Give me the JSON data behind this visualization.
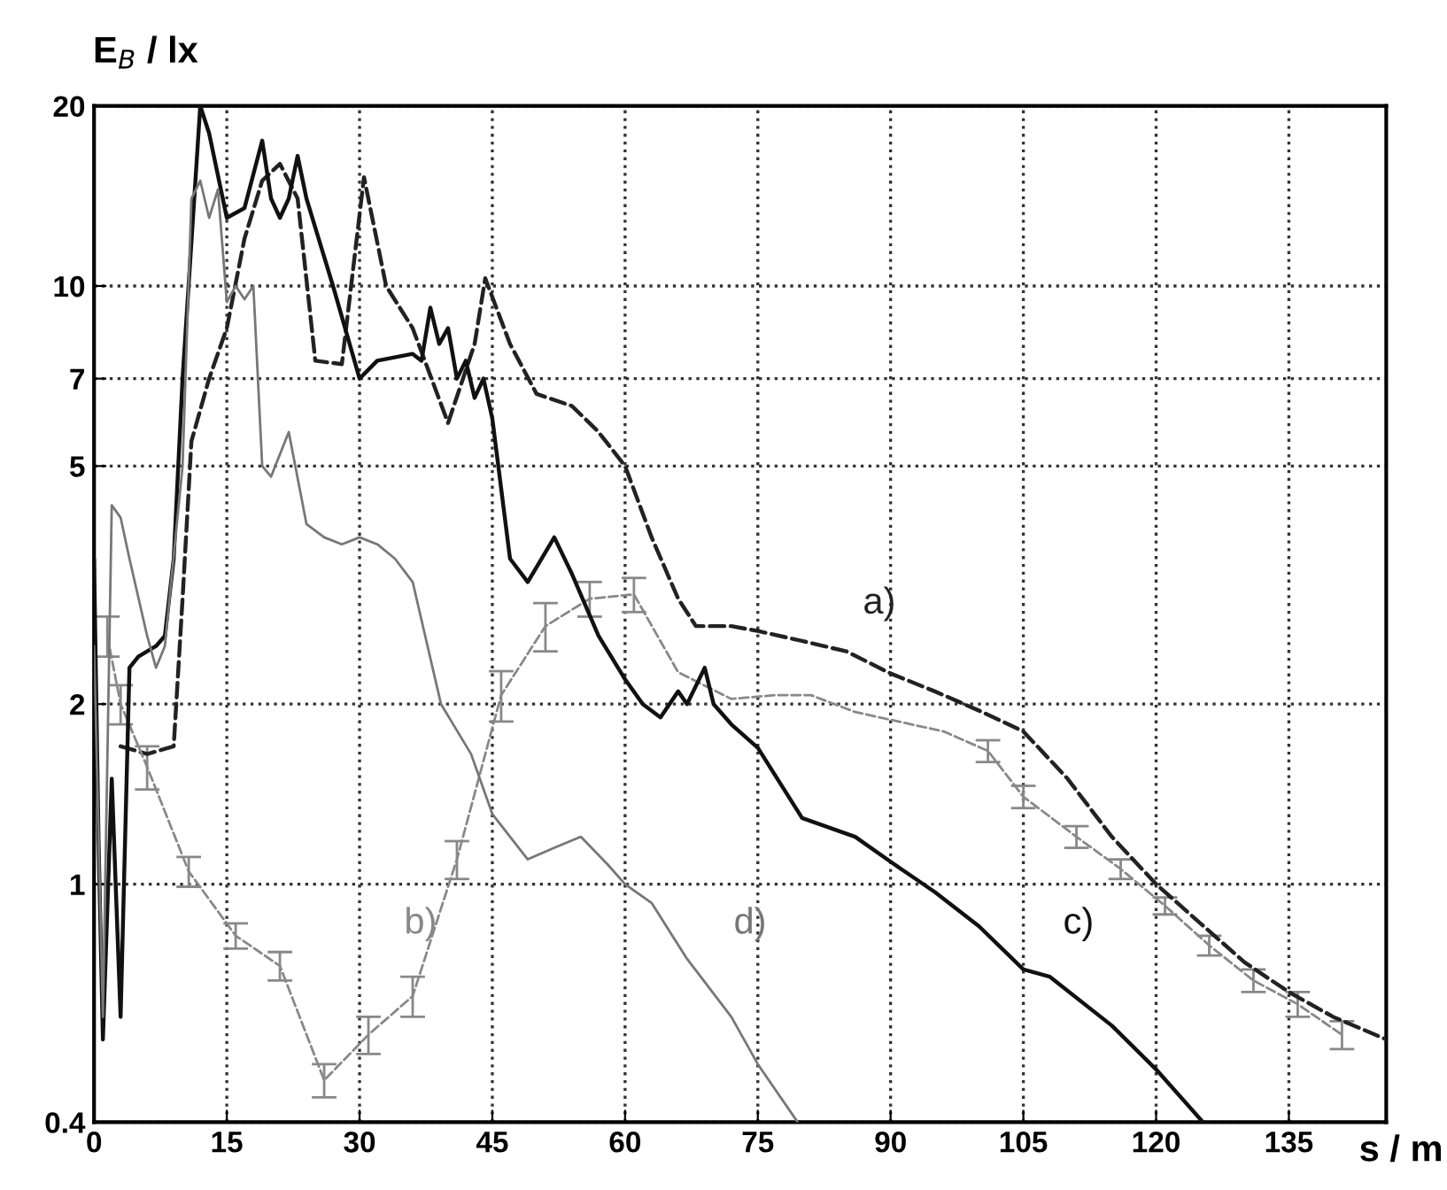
{
  "chart_data": {
    "type": "line",
    "xlabel": "s / m",
    "ylabel": "E$_{B}$ / lx",
    "log": "y",
    "grid": true,
    "xlim": [
      0,
      146
    ],
    "ylim": [
      0.4,
      20
    ],
    "xticks": [
      0,
      15,
      30,
      45,
      60,
      75,
      90,
      105,
      120,
      135
    ],
    "yticks": [
      0.4,
      1,
      2,
      5,
      7,
      10,
      20
    ],
    "series": [
      {
        "name": "a)",
        "color": "#222222",
        "line_style": "dashed",
        "x": [
          3,
          6,
          9,
          10,
          11,
          13,
          15,
          17,
          19,
          21,
          23,
          25,
          28,
          30.5,
          33,
          36,
          40,
          43,
          44.2,
          47,
          50,
          54,
          57,
          60,
          63,
          66,
          68,
          72,
          75,
          80,
          85,
          90,
          95,
          100,
          105,
          110,
          115,
          120,
          125,
          130,
          135,
          140,
          146
        ],
        "values": [
          1.7,
          1.65,
          1.7,
          3,
          5.5,
          7,
          8.5,
          12,
          15,
          16,
          14,
          7.5,
          7.4,
          15.2,
          10,
          8.5,
          5.9,
          8,
          10.3,
          8,
          6.6,
          6.3,
          5.7,
          5,
          3.8,
          3,
          2.7,
          2.7,
          2.65,
          2.55,
          2.45,
          2.25,
          2.1,
          1.95,
          1.8,
          1.5,
          1.2,
          1.0,
          0.86,
          0.74,
          0.66,
          0.6,
          0.55
        ]
      },
      {
        "name": "b)",
        "color": "#888888",
        "line_style": "dashed",
        "x": [
          1.5,
          3,
          6,
          10.7,
          16,
          21,
          26,
          31,
          36,
          41,
          46,
          51,
          56,
          61,
          66,
          72,
          77,
          81,
          86,
          91.6,
          96,
          101,
          105,
          111,
          116,
          121,
          126,
          131,
          136,
          141
        ],
        "values": [
          2.6,
          2.0,
          1.57,
          1.05,
          0.82,
          0.73,
          0.47,
          0.56,
          0.65,
          1.1,
          2.07,
          2.7,
          3.0,
          3.05,
          2.26,
          2.04,
          2.07,
          2.07,
          1.94,
          1.86,
          1.8,
          1.67,
          1.4,
          1.2,
          1.06,
          0.92,
          0.79,
          0.69,
          0.63,
          0.56
        ],
        "errors": [
          0.2,
          0.15,
          0.13,
          0.06,
          0.04,
          0.04,
          0.03,
          0.04,
          0.05,
          0.08,
          0.2,
          0.25,
          0.2,
          0.2,
          null,
          null,
          null,
          null,
          null,
          null,
          null,
          0.07,
          0.06,
          0.05,
          0.04,
          0.03,
          0.03,
          0.03,
          0.03,
          0.03
        ]
      },
      {
        "name": "c)",
        "color": "#111111",
        "line_style": "solid",
        "x": [
          0,
          0.5,
          1,
          2,
          3,
          4,
          5,
          7,
          8,
          9,
          10,
          12,
          13,
          15,
          17,
          19,
          20,
          21,
          22,
          23,
          24,
          27,
          30,
          32,
          36,
          37,
          38,
          39,
          40,
          41,
          42,
          43,
          44,
          45,
          47,
          49,
          52,
          54,
          57,
          60,
          62,
          64,
          66,
          67,
          69,
          70,
          72,
          75,
          80,
          86,
          90,
          95,
          100,
          105,
          108,
          115,
          120,
          125.3
        ],
        "values": [
          3.5,
          1.2,
          0.55,
          1.5,
          0.6,
          2.3,
          2.4,
          2.5,
          2.6,
          3.5,
          7,
          20,
          18,
          13,
          13.5,
          17.5,
          14,
          13,
          14,
          16.5,
          14,
          10,
          7,
          7.5,
          7.7,
          7.5,
          9.2,
          8,
          8.5,
          7,
          7.5,
          6.5,
          7,
          6,
          3.5,
          3.2,
          3.8,
          3.3,
          2.6,
          2.2,
          2.0,
          1.9,
          2.1,
          2.0,
          2.3,
          2.0,
          1.85,
          1.69,
          1.29,
          1.2,
          1.09,
          0.97,
          0.85,
          0.72,
          0.7,
          0.58,
          0.49,
          0.4
        ]
      },
      {
        "name": "d)",
        "color": "#777777",
        "line_style": "solid",
        "x": [
          0,
          1,
          2,
          3,
          4,
          6,
          7,
          8,
          10,
          11,
          12,
          13,
          14,
          15,
          16,
          17,
          18,
          19,
          20,
          22,
          24,
          26,
          28,
          30,
          32,
          34,
          36,
          39.2,
          42.6,
          45,
          49,
          52,
          55,
          58,
          60,
          63,
          67,
          72,
          75,
          79.5
        ],
        "values": [
          2.5,
          0.6,
          4.3,
          4.1,
          3.5,
          2.6,
          2.3,
          2.5,
          5,
          14,
          15,
          13,
          14.5,
          9.4,
          10,
          9.5,
          10,
          5,
          4.8,
          5.7,
          4.0,
          3.8,
          3.7,
          3.8,
          3.7,
          3.5,
          3.2,
          2.0,
          1.65,
          1.31,
          1.1,
          1.15,
          1.2,
          1.08,
          1.0,
          0.93,
          0.75,
          0.6,
          0.5,
          0.4
        ]
      }
    ]
  }
}
